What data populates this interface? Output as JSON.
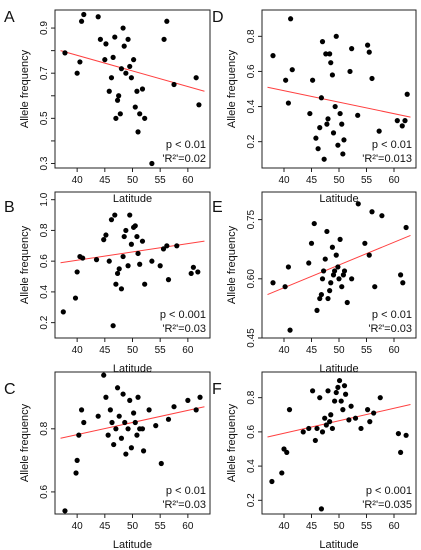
{
  "figure": {
    "background": "#ffffff",
    "point_color": "#000000",
    "fit_color": "#ff4040"
  },
  "chart_data": [
    {
      "panel": "A",
      "type": "scatter",
      "xlabel": "Latitude",
      "ylabel": "Allele frequency",
      "xlim": [
        36,
        64
      ],
      "ylim": [
        0.28,
        0.98
      ],
      "xticks": [
        40,
        45,
        50,
        55,
        60
      ],
      "yticks": [
        0.3,
        0.4,
        0.5,
        0.6,
        0.7,
        0.8,
        0.9
      ],
      "ytick_labels": [
        "0.3",
        "0.5",
        "0.7",
        "0.9"
      ],
      "stat_p": "p < 0.01",
      "stat_r2": "'R²'=0.02",
      "fit": [
        [
          37,
          0.8
        ],
        [
          63,
          0.62
        ]
      ],
      "points": [
        [
          37.8,
          0.79
        ],
        [
          40,
          0.7
        ],
        [
          40.5,
          0.75
        ],
        [
          40.8,
          0.93
        ],
        [
          41.2,
          0.96
        ],
        [
          43.8,
          0.95
        ],
        [
          44.2,
          0.85
        ],
        [
          45,
          0.76
        ],
        [
          45.2,
          0.83
        ],
        [
          45.8,
          0.62
        ],
        [
          46.2,
          0.68
        ],
        [
          46.5,
          0.77
        ],
        [
          46.8,
          0.86
        ],
        [
          47,
          0.5
        ],
        [
          47.3,
          0.58
        ],
        [
          47.5,
          0.6
        ],
        [
          47.8,
          0.52
        ],
        [
          48,
          0.72
        ],
        [
          48.3,
          0.9
        ],
        [
          48.5,
          0.82
        ],
        [
          48.8,
          0.7
        ],
        [
          49.2,
          0.85
        ],
        [
          49.5,
          0.73
        ],
        [
          49.8,
          0.68
        ],
        [
          50.2,
          0.76
        ],
        [
          50.5,
          0.55
        ],
        [
          50.8,
          0.62
        ],
        [
          51,
          0.44
        ],
        [
          51.3,
          0.52
        ],
        [
          51.8,
          0.63
        ],
        [
          52.2,
          0.5
        ],
        [
          53.5,
          0.3
        ],
        [
          55.7,
          0.85
        ],
        [
          56.2,
          0.93
        ],
        [
          57.5,
          0.65
        ],
        [
          61.5,
          0.68
        ],
        [
          62,
          0.56
        ]
      ]
    },
    {
      "panel": "D",
      "type": "scatter",
      "xlabel": "Latitude",
      "ylabel": "Allele frequency",
      "xlim": [
        36,
        64
      ],
      "ylim": [
        0.05,
        0.95
      ],
      "xticks": [
        40,
        45,
        50,
        55,
        60
      ],
      "yticks": [
        0.2,
        0.4,
        0.6,
        0.8
      ],
      "ytick_labels": [
        "0.2",
        "0.4",
        "0.6",
        "0.8"
      ],
      "stat_p": "p < 0.01",
      "stat_r2": "'R²'=0.013",
      "fit": [
        [
          37,
          0.51
        ],
        [
          63,
          0.34
        ]
      ],
      "points": [
        [
          38,
          0.69
        ],
        [
          40.3,
          0.55
        ],
        [
          40.8,
          0.42
        ],
        [
          41.2,
          0.9
        ],
        [
          41.5,
          0.61
        ],
        [
          44.7,
          0.36
        ],
        [
          45.2,
          0.55
        ],
        [
          45.8,
          0.22
        ],
        [
          46.2,
          0.16
        ],
        [
          46.5,
          0.28
        ],
        [
          46.8,
          0.45
        ],
        [
          47,
          0.77
        ],
        [
          47.3,
          0.1
        ],
        [
          47.6,
          0.7
        ],
        [
          47.8,
          0.3
        ],
        [
          48,
          0.33
        ],
        [
          48.3,
          0.7
        ],
        [
          48.5,
          0.65
        ],
        [
          48.8,
          0.58
        ],
        [
          49,
          0.25
        ],
        [
          49.3,
          0.4
        ],
        [
          49.5,
          0.8
        ],
        [
          49.8,
          0.18
        ],
        [
          50.2,
          0.36
        ],
        [
          50.5,
          0.3
        ],
        [
          50.7,
          0.13
        ],
        [
          50.9,
          0.21
        ],
        [
          52,
          0.6
        ],
        [
          52.3,
          0.73
        ],
        [
          53.4,
          0.35
        ],
        [
          55.2,
          0.75
        ],
        [
          55.5,
          0.71
        ],
        [
          56,
          0.56
        ],
        [
          57.3,
          0.26
        ],
        [
          60.6,
          0.32
        ],
        [
          61.5,
          0.29
        ],
        [
          62,
          0.32
        ],
        [
          62.4,
          0.47
        ]
      ]
    },
    {
      "panel": "B",
      "type": "scatter",
      "xlabel": "Latitude",
      "ylabel": "Allele frequency",
      "xlim": [
        36,
        64
      ],
      "ylim": [
        0.1,
        1.05
      ],
      "xticks": [
        40,
        45,
        50,
        55,
        60
      ],
      "yticks": [
        0.2,
        0.4,
        0.6,
        0.8,
        1.0
      ],
      "ytick_labels": [
        "0.2",
        "0.4",
        "0.6",
        "0.8",
        "1.0"
      ],
      "stat_p": "p < 0.001",
      "stat_r2": "'R²'=0.03",
      "fit": [
        [
          37,
          0.59
        ],
        [
          63,
          0.73
        ]
      ],
      "points": [
        [
          37.5,
          0.27
        ],
        [
          39.7,
          0.36
        ],
        [
          40,
          0.53
        ],
        [
          40.5,
          0.63
        ],
        [
          41,
          0.62
        ],
        [
          43.5,
          0.61
        ],
        [
          44.8,
          0.74
        ],
        [
          45.2,
          0.77
        ],
        [
          45.8,
          0.6
        ],
        [
          46.2,
          0.87
        ],
        [
          46.5,
          0.18
        ],
        [
          46.8,
          0.9
        ],
        [
          47,
          0.45
        ],
        [
          47.3,
          0.52
        ],
        [
          47.6,
          0.55
        ],
        [
          48,
          0.42
        ],
        [
          48.3,
          0.63
        ],
        [
          48.5,
          0.76
        ],
        [
          48.8,
          0.8
        ],
        [
          49.2,
          0.57
        ],
        [
          49.5,
          0.9
        ],
        [
          49.8,
          0.71
        ],
        [
          50.2,
          0.82
        ],
        [
          50.5,
          0.83
        ],
        [
          50.8,
          0.76
        ],
        [
          51,
          0.65
        ],
        [
          51.3,
          0.58
        ],
        [
          51.8,
          0.73
        ],
        [
          52.2,
          0.45
        ],
        [
          53.5,
          0.6
        ],
        [
          55,
          0.57
        ],
        [
          55.6,
          0.68
        ],
        [
          56.2,
          0.7
        ],
        [
          56.5,
          0.48
        ],
        [
          58,
          0.7
        ],
        [
          60.6,
          0.52
        ],
        [
          61,
          0.56
        ],
        [
          61.8,
          0.53
        ]
      ]
    },
    {
      "panel": "E",
      "type": "scatter",
      "xlabel": "Latitude",
      "ylabel": "Allele frequency",
      "xlim": [
        36,
        64
      ],
      "ylim": [
        0.45,
        0.82
      ],
      "xticks": [
        40,
        45,
        50,
        55,
        60
      ],
      "yticks": [
        0.45,
        0.6,
        0.75
      ],
      "ytick_labels": [
        "0.45",
        "0.60",
        "0.75"
      ],
      "stat_p": "p < 0.01",
      "stat_r2": "'R²'=0.03",
      "fit": [
        [
          37,
          0.56
        ],
        [
          63,
          0.71
        ]
      ],
      "points": [
        [
          38,
          0.59
        ],
        [
          40.2,
          0.58
        ],
        [
          40.8,
          0.63
        ],
        [
          41.1,
          0.47
        ],
        [
          44.5,
          0.64
        ],
        [
          45,
          0.69
        ],
        [
          45.5,
          0.74
        ],
        [
          46,
          0.52
        ],
        [
          46.5,
          0.55
        ],
        [
          46.8,
          0.56
        ],
        [
          47,
          0.6
        ],
        [
          47.2,
          0.62
        ],
        [
          47.5,
          0.65
        ],
        [
          47.8,
          0.72
        ],
        [
          48,
          0.55
        ],
        [
          48.3,
          0.57
        ],
        [
          48.5,
          0.59
        ],
        [
          48.8,
          0.68
        ],
        [
          49,
          0.61
        ],
        [
          49.2,
          0.62
        ],
        [
          49.5,
          0.66
        ],
        [
          49.8,
          0.63
        ],
        [
          50,
          0.6
        ],
        [
          50.2,
          0.7
        ],
        [
          50.5,
          0.58
        ],
        [
          50.8,
          0.61
        ],
        [
          51,
          0.62
        ],
        [
          51.5,
          0.54
        ],
        [
          52.3,
          0.6
        ],
        [
          53.5,
          0.79
        ],
        [
          54.7,
          0.69
        ],
        [
          55.5,
          0.66
        ],
        [
          56,
          0.77
        ],
        [
          56.5,
          0.58
        ],
        [
          57.8,
          0.76
        ],
        [
          61.2,
          0.61
        ],
        [
          61.6,
          0.59
        ],
        [
          62.2,
          0.73
        ]
      ]
    },
    {
      "panel": "C",
      "type": "scatter",
      "xlabel": "Latitude",
      "ylabel": "Allele frequency",
      "xlim": [
        36,
        64
      ],
      "ylim": [
        0.53,
        0.98
      ],
      "xticks": [
        40,
        45,
        50,
        55,
        60
      ],
      "yticks": [
        0.6,
        0.8
      ],
      "ytick_labels": [
        "0.6",
        "0.8"
      ],
      "stat_p": "p < 0.01",
      "stat_r2": "'R²'=0.03",
      "fit": [
        [
          37,
          0.77
        ],
        [
          63,
          0.87
        ]
      ],
      "points": [
        [
          37.8,
          0.54
        ],
        [
          39.8,
          0.66
        ],
        [
          40,
          0.7
        ],
        [
          40.3,
          0.78
        ],
        [
          40.8,
          0.86
        ],
        [
          41.2,
          0.82
        ],
        [
          43.8,
          0.84
        ],
        [
          44.8,
          0.97
        ],
        [
          45.2,
          0.9
        ],
        [
          45.6,
          0.78
        ],
        [
          46,
          0.86
        ],
        [
          46.3,
          0.82
        ],
        [
          46.6,
          0.75
        ],
        [
          47,
          0.8
        ],
        [
          47.3,
          0.93
        ],
        [
          47.6,
          0.84
        ],
        [
          48,
          0.77
        ],
        [
          48.3,
          0.91
        ],
        [
          48.6,
          0.82
        ],
        [
          48.8,
          0.72
        ],
        [
          49.2,
          0.8
        ],
        [
          49.5,
          0.89
        ],
        [
          49.8,
          0.74
        ],
        [
          50.2,
          0.85
        ],
        [
          50.5,
          0.82
        ],
        [
          50.8,
          0.78
        ],
        [
          51,
          0.9
        ],
        [
          51.3,
          0.8
        ],
        [
          51.8,
          0.8
        ],
        [
          52,
          0.73
        ],
        [
          53,
          0.86
        ],
        [
          54.2,
          0.81
        ],
        [
          55.2,
          0.69
        ],
        [
          56.5,
          0.83
        ],
        [
          57.5,
          0.87
        ],
        [
          60,
          0.89
        ],
        [
          61.5,
          0.86
        ],
        [
          62.2,
          0.9
        ]
      ]
    },
    {
      "panel": "F",
      "type": "scatter",
      "xlabel": "Latitude",
      "ylabel": "Allele frequency",
      "xlim": [
        36,
        64
      ],
      "ylim": [
        0.12,
        0.95
      ],
      "xticks": [
        40,
        45,
        50,
        55,
        60
      ],
      "yticks": [
        0.2,
        0.4,
        0.6,
        0.8
      ],
      "ytick_labels": [
        "0.2",
        "0.4",
        "0.6",
        "0.8"
      ],
      "stat_p": "p < 0.001",
      "stat_r2": "'R²'=0.035",
      "fit": [
        [
          37,
          0.57
        ],
        [
          63,
          0.76
        ]
      ],
      "points": [
        [
          37.8,
          0.31
        ],
        [
          39.6,
          0.36
        ],
        [
          40,
          0.5
        ],
        [
          40.5,
          0.48
        ],
        [
          41,
          0.73
        ],
        [
          43.5,
          0.6
        ],
        [
          44.5,
          0.62
        ],
        [
          45.2,
          0.84
        ],
        [
          45.7,
          0.55
        ],
        [
          46,
          0.62
        ],
        [
          46.5,
          0.8
        ],
        [
          46.8,
          0.15
        ],
        [
          47,
          0.6
        ],
        [
          47.4,
          0.68
        ],
        [
          47.7,
          0.64
        ],
        [
          48,
          0.84
        ],
        [
          48.3,
          0.66
        ],
        [
          48.5,
          0.7
        ],
        [
          48.8,
          0.62
        ],
        [
          49.2,
          0.78
        ],
        [
          49.5,
          0.83
        ],
        [
          49.8,
          0.86
        ],
        [
          50.1,
          0.9
        ],
        [
          50.4,
          0.78
        ],
        [
          50.7,
          0.73
        ],
        [
          51,
          0.87
        ],
        [
          51.2,
          0.82
        ],
        [
          51.8,
          0.67
        ],
        [
          52.2,
          0.75
        ],
        [
          53,
          0.68
        ],
        [
          54,
          0.62
        ],
        [
          55.2,
          0.73
        ],
        [
          55.6,
          0.66
        ],
        [
          56.3,
          0.71
        ],
        [
          57.5,
          0.8
        ],
        [
          60.8,
          0.59
        ],
        [
          61.2,
          0.48
        ],
        [
          62.2,
          0.58
        ]
      ]
    }
  ]
}
